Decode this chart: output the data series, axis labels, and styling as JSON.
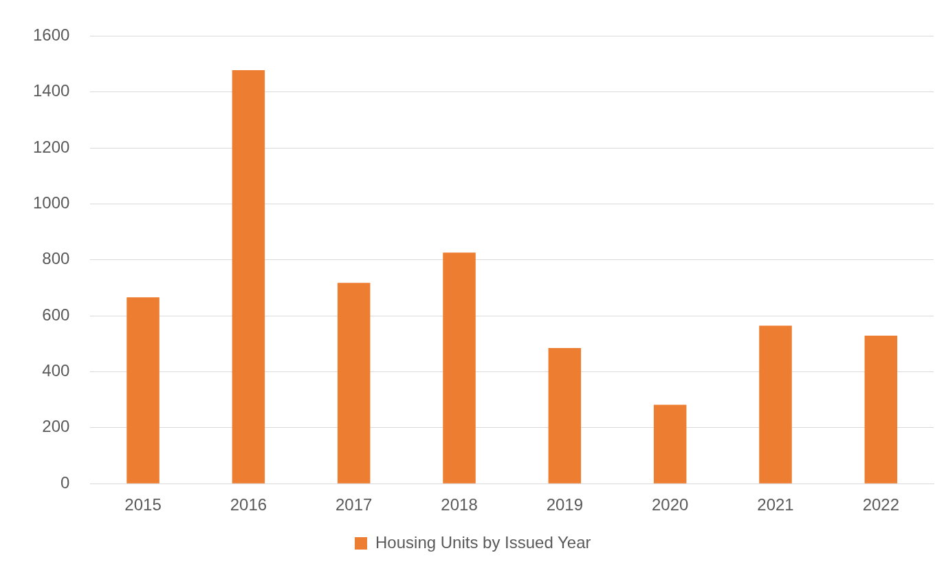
{
  "chart_data": {
    "type": "bar",
    "categories": [
      "2015",
      "2016",
      "2017",
      "2018",
      "2019",
      "2020",
      "2021",
      "2022"
    ],
    "series": [
      {
        "name": "Housing Units by Issued Year",
        "color": "#ed7d31",
        "values": [
          666,
          1478,
          718,
          826,
          485,
          282,
          565,
          529
        ]
      }
    ],
    "ylim": [
      0,
      1600
    ],
    "yticks": [
      0,
      200,
      400,
      600,
      800,
      1000,
      1200,
      1400,
      1600
    ],
    "grid": "y",
    "legend": "bottom"
  }
}
